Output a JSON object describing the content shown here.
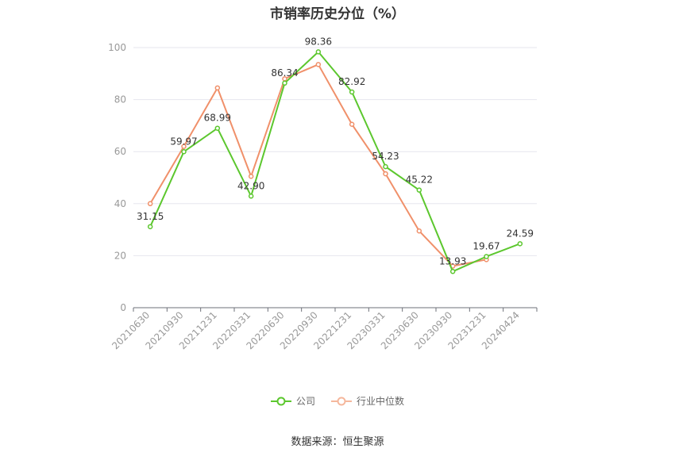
{
  "chart_data": {
    "type": "line",
    "title": "市销率历史分位（%）",
    "categories": [
      "20210630",
      "20210930",
      "20211231",
      "20220331",
      "20220630",
      "20220930",
      "20221231",
      "20230331",
      "20230630",
      "20230930",
      "20231231",
      "20240424"
    ],
    "ylim": [
      0,
      100
    ],
    "yticks": [
      0,
      20,
      40,
      60,
      80,
      100
    ],
    "grid": true,
    "legend_position": "bottom",
    "series": [
      {
        "name": "公司",
        "color": "#5cc72e",
        "values": [
          31.15,
          59.97,
          68.99,
          42.9,
          86.34,
          98.36,
          82.92,
          54.23,
          45.22,
          13.93,
          19.67,
          24.59
        ],
        "labels": [
          "31.15",
          "59.97",
          "68.99",
          "42.90",
          "86.34",
          "98.36",
          "82.92",
          "54.23",
          "45.22",
          "13.93",
          "19.67",
          "24.59"
        ]
      },
      {
        "name": "行业中位数",
        "color": "#f0906a",
        "values": [
          40,
          62,
          84.5,
          50.5,
          88,
          93.5,
          70.5,
          51.5,
          29.5,
          16,
          18.5,
          null
        ]
      }
    ]
  },
  "legend": {
    "company": "公司",
    "industry": "行业中位数"
  },
  "source": "数据来源：恒生聚源"
}
